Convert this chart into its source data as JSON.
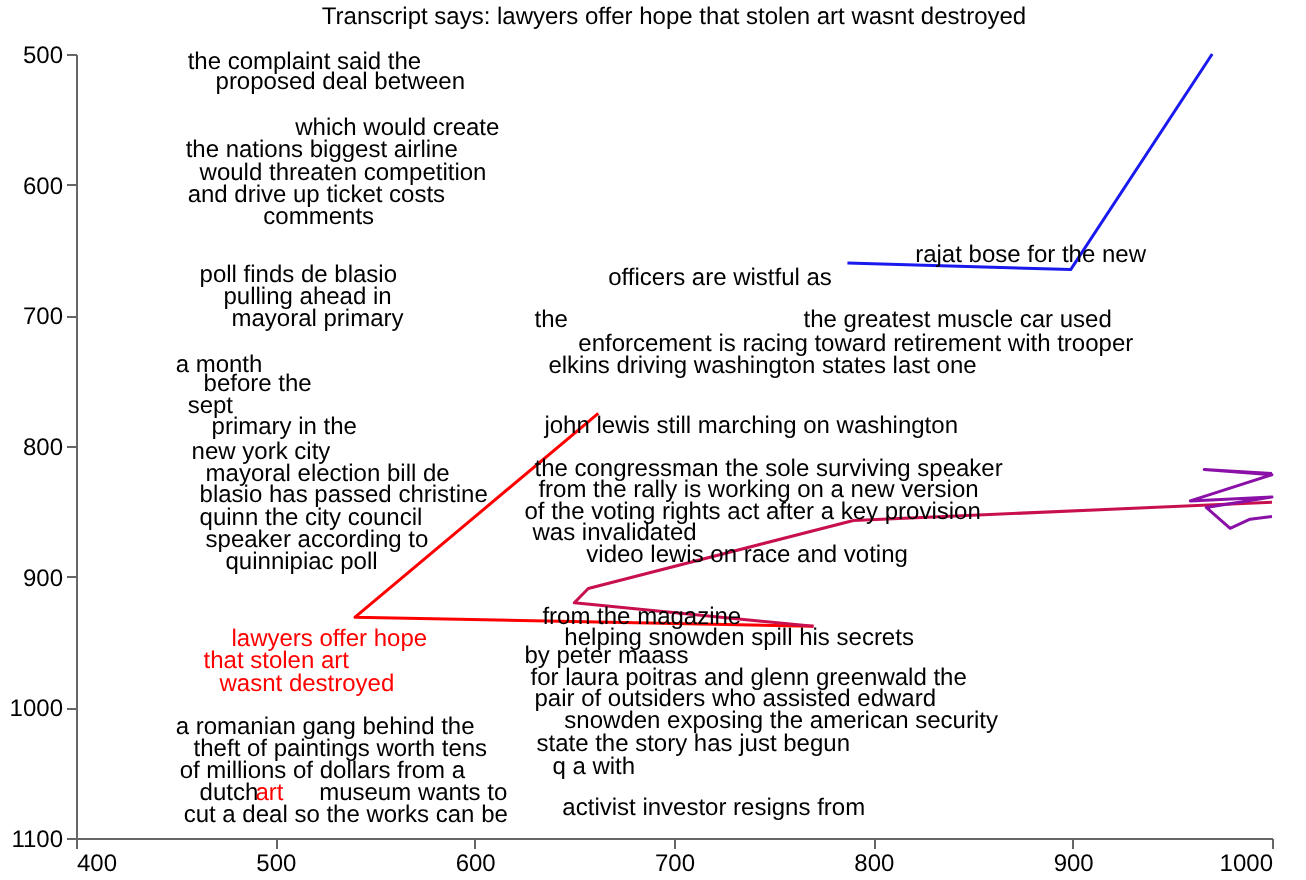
{
  "chart_data": {
    "type": "line",
    "title": "Transcript says: lawyers offer hope that stolen art wasnt destroyed",
    "xlim": [
      400,
      1000
    ],
    "xticks": [
      400,
      500,
      600,
      700,
      800,
      900,
      1000
    ],
    "ylim": [
      1100,
      500
    ],
    "yticks": [
      500,
      600,
      700,
      800,
      900,
      1000,
      1100
    ],
    "grid": false,
    "legend": false,
    "marker": "none",
    "line_style": "solid",
    "series": [
      {
        "color": "#ff0000",
        "x": [
          662,
          540,
          770
        ],
        "values": [
          775,
          931,
          938
        ]
      },
      {
        "color": "#c8104e",
        "x": [
          770,
          650,
          657,
          790,
          1000
        ],
        "values": [
          938,
          920,
          909,
          857,
          843
        ]
      },
      {
        "color": "#8a10a8",
        "x": [
          1000,
          966,
          1000,
          959,
          1000,
          967,
          979,
          989,
          1000
        ],
        "values": [
          821,
          818,
          822,
          842,
          839,
          847,
          863,
          856,
          854
        ]
      },
      {
        "color": "#1a1aee",
        "x": [
          787,
          899,
          970
        ],
        "values": [
          660,
          665,
          500
        ]
      }
    ],
    "annotations": [
      "the complaint said the",
      "proposed deal between",
      "which would create",
      "the nations biggest airline",
      "would threaten competition",
      "and drive up ticket costs",
      "comments",
      "poll finds de blasio",
      "pulling ahead in",
      "mayoral primary",
      "a month",
      "before the",
      "sept",
      "primary in the",
      "new york city",
      "mayoral election bill de",
      "blasio has passed christine",
      "quinn the city council",
      "speaker according to",
      "quinnipiac poll",
      "lawyers offer hope",
      "that stolen art",
      "wasnt destroyed",
      "a romanian gang behind the",
      "theft of paintings worth tens",
      "of millions of dollars from a",
      "dutch",
      "art",
      "museum wants to",
      "cut a deal so the works can be",
      "rajat bose for the new",
      "officers are wistful as",
      "the",
      "the greatest muscle car used",
      "enforcement is racing toward retirement with trooper",
      "elkins driving washington states last one",
      "john lewis still marching on washington",
      "the congressman the sole surviving speaker",
      "from the rally is working on a new version",
      "of the voting rights act after a key provision",
      "was invalidated",
      "video lewis on race and voting",
      "from the magazine",
      "helping snowden spill his secrets",
      "by peter maass",
      "for laura poitras and glenn greenwald the",
      "pair of outsiders who assisted edward",
      "snowden exposing the american security",
      "state the story has just begun",
      "q a with",
      "activist investor resigns from"
    ]
  }
}
